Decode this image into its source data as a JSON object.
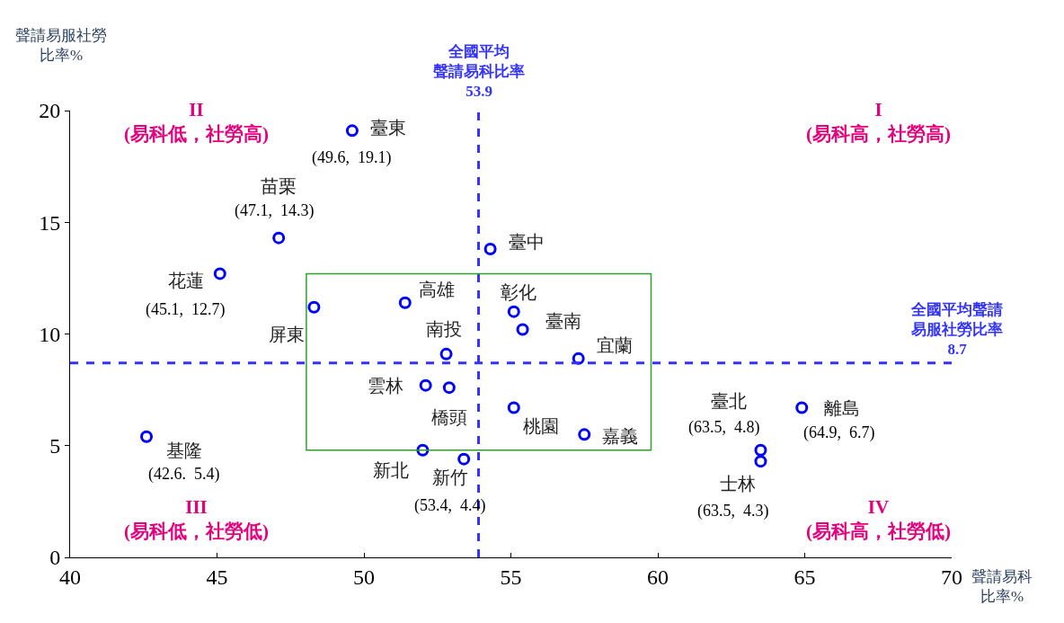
{
  "chart_data": {
    "type": "scatter",
    "xlabel": "聲請易科比率%",
    "ylabel": "聲請易服社勞比率%",
    "x": [
      49.6,
      47.1,
      45.1,
      48.3,
      51.4,
      52.8,
      52.1,
      52.9,
      52.0,
      53.4,
      54.3,
      55.1,
      55.4,
      57.3,
      55.1,
      57.5,
      63.5,
      63.5,
      64.9,
      42.6
    ],
    "series": [
      {
        "color": "#0000ff",
        "values": [
          19.1,
          14.3,
          12.7,
          11.2,
          11.4,
          9.1,
          7.7,
          7.6,
          4.8,
          4.4,
          13.8,
          11.0,
          10.2,
          8.9,
          6.7,
          5.5,
          4.8,
          4.3,
          6.7,
          5.4
        ],
        "value_labels": [
          "(49.6,  19.1)",
          "(47.1,  14.3)",
          "(45.1,  12.7)",
          null,
          null,
          null,
          null,
          null,
          null,
          "(53.4,  4.4)",
          null,
          null,
          null,
          null,
          null,
          null,
          "(63.5,  4.8)",
          "(63.5,  4.3)",
          "(64.9,  6.7)",
          "(42.6.  5.4)"
        ]
      }
    ],
    "xlim": [
      40,
      70
    ],
    "ylim": [
      0,
      20
    ],
    "xticks": [
      40,
      45,
      50,
      55,
      60,
      65,
      70
    ],
    "yticks": [
      0,
      5,
      10,
      15,
      20
    ],
    "marker": "circle",
    "ref_lines": [
      {
        "axis": "x",
        "value": 53.9,
        "label": "全國平均聲請易科比率\n53.9",
        "color": "#3333ff",
        "line_style": "dashed"
      },
      {
        "axis": "y",
        "value": 8.7,
        "label": "全國平均聲請易服社勞比率\n8.7",
        "color": "#3333ff",
        "line_style": "dashed"
      }
    ],
    "annotations": [
      {
        "text": "臺東",
        "x": 49.6,
        "y": 19.1
      },
      {
        "text": "苗栗",
        "x": 47.1,
        "y": 14.3
      },
      {
        "text": "花蓮",
        "x": 45.1,
        "y": 12.7
      },
      {
        "text": "屏東",
        "x": 48.3,
        "y": 11.2
      },
      {
        "text": "高雄",
        "x": 51.4,
        "y": 11.4
      },
      {
        "text": "南投",
        "x": 52.8,
        "y": 9.1
      },
      {
        "text": "雲林",
        "x": 52.1,
        "y": 7.7
      },
      {
        "text": "橋頭",
        "x": 52.9,
        "y": 7.6
      },
      {
        "text": "新北",
        "x": 52.0,
        "y": 4.8
      },
      {
        "text": "新竹",
        "x": 53.4,
        "y": 4.4
      },
      {
        "text": "臺中",
        "x": 54.3,
        "y": 13.8
      },
      {
        "text": "彰化",
        "x": 55.1,
        "y": 11.0
      },
      {
        "text": "臺南",
        "x": 55.4,
        "y": 10.2
      },
      {
        "text": "宜蘭",
        "x": 57.3,
        "y": 8.9
      },
      {
        "text": "桃園",
        "x": 55.1,
        "y": 6.7
      },
      {
        "text": "嘉義",
        "x": 57.5,
        "y": 5.5
      },
      {
        "text": "臺北",
        "x": 63.5,
        "y": 4.8
      },
      {
        "text": "士林",
        "x": 63.5,
        "y": 4.3
      },
      {
        "text": "離島",
        "x": 64.9,
        "y": 6.7
      },
      {
        "text": "基隆",
        "x": 42.6,
        "y": 5.4
      },
      "II\n(易科低，社勞高)",
      "I\n(易科高，社勞高)",
      "III\n(易科低，社勞低)",
      "IV\n(易科高，社勞低)"
    ]
  }
}
